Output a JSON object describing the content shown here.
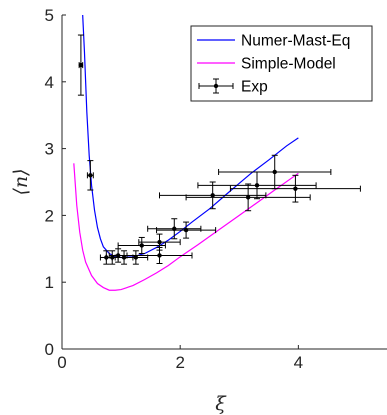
{
  "chart_data": {
    "type": "line",
    "xlabel": "ξ",
    "ylabel": "⟨n⟩",
    "xlim": [
      0,
      5.5
    ],
    "ylim": [
      0,
      5
    ],
    "xticks": [
      0,
      2,
      4
    ],
    "yticks": [
      0,
      1,
      2,
      3,
      4,
      5
    ],
    "grid": false,
    "legend_position": "top-right",
    "series": [
      {
        "name": "Numer-Mast-Eq",
        "kind": "line",
        "color": "#0000ff",
        "x": [
          0.35,
          0.38,
          0.42,
          0.46,
          0.5,
          0.55,
          0.6,
          0.65,
          0.7,
          0.8,
          0.9,
          1.0,
          1.2,
          1.4,
          1.6,
          1.8,
          2.0,
          2.2,
          2.5,
          2.8,
          3.0,
          3.2,
          3.5,
          3.8,
          4.0
        ],
        "y": [
          5.0,
          4.45,
          3.55,
          2.9,
          2.45,
          2.08,
          1.82,
          1.65,
          1.53,
          1.43,
          1.38,
          1.37,
          1.38,
          1.43,
          1.52,
          1.63,
          1.76,
          1.9,
          2.1,
          2.33,
          2.48,
          2.63,
          2.83,
          3.04,
          3.16
        ]
      },
      {
        "name": "Simple-Model",
        "kind": "line",
        "color": "#ff00ff",
        "x": [
          0.2,
          0.25,
          0.3,
          0.35,
          0.4,
          0.5,
          0.6,
          0.7,
          0.8,
          0.9,
          1.0,
          1.2,
          1.4,
          1.6,
          1.8,
          2.0,
          2.3,
          2.6,
          3.0,
          3.3,
          3.6,
          4.0
        ],
        "y": [
          2.78,
          2.15,
          1.75,
          1.48,
          1.3,
          1.1,
          0.98,
          0.92,
          0.88,
          0.88,
          0.89,
          0.95,
          1.04,
          1.14,
          1.25,
          1.38,
          1.56,
          1.75,
          2.0,
          2.19,
          2.38,
          2.63
        ]
      },
      {
        "name": "Exp",
        "kind": "errorbar",
        "color": "#000000",
        "x": [
          0.32,
          0.48,
          0.75,
          0.85,
          0.95,
          1.05,
          1.25,
          1.35,
          1.65,
          1.65,
          1.9,
          2.1,
          2.55,
          3.15,
          3.3,
          3.6,
          3.95
        ],
        "y": [
          4.25,
          2.6,
          1.37,
          1.37,
          1.4,
          1.37,
          1.37,
          1.55,
          1.4,
          1.6,
          1.8,
          1.78,
          2.3,
          2.27,
          2.45,
          2.65,
          2.4
        ],
        "yerr": [
          0.45,
          0.22,
          0.1,
          0.1,
          0.1,
          0.1,
          0.1,
          0.12,
          0.12,
          0.12,
          0.15,
          0.12,
          0.2,
          0.2,
          0.2,
          0.25,
          0.2
        ],
        "xerr": [
          0.03,
          0.05,
          0.1,
          0.1,
          0.15,
          0.15,
          0.2,
          0.4,
          0.55,
          0.35,
          0.45,
          0.5,
          0.9,
          1.05,
          1.0,
          0.95,
          1.1
        ]
      }
    ]
  }
}
